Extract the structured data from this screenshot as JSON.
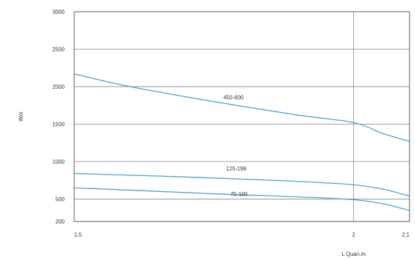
{
  "chart_data": {
    "type": "line",
    "xlabel": "L Quan.m",
    "ylabel": "Wm",
    "xlim": [
      1.5,
      2.1
    ],
    "ylim": [
      200,
      3000
    ],
    "x_ticks": [
      1.5,
      2,
      2.1
    ],
    "x_tick_labels": [
      "1,5",
      "2",
      "2,1"
    ],
    "y_ticks": [
      200,
      500,
      1000,
      1500,
      2000,
      2500,
      3000
    ],
    "y_tick_labels": [
      "200",
      "500",
      "1000",
      "1500",
      "2000",
      "2500",
      "3000"
    ],
    "grid": true,
    "colors": {
      "series": "#3f9fd6",
      "grid": "#7f7f7f",
      "axis": "#555555"
    },
    "series": [
      {
        "name": "450-600",
        "x": [
          1.5,
          1.6,
          1.75,
          1.9,
          2.0,
          2.05,
          2.1
        ],
        "y": [
          2170,
          2000,
          1800,
          1620,
          1520,
          1380,
          1270
        ]
      },
      {
        "name": "125-199",
        "x": [
          1.5,
          1.75,
          2.0,
          2.1
        ],
        "y": [
          840,
          780,
          690,
          540
        ]
      },
      {
        "name": "75-100",
        "x": [
          1.5,
          1.75,
          2.0,
          2.1
        ],
        "y": [
          650,
          570,
          490,
          350
        ]
      }
    ]
  }
}
